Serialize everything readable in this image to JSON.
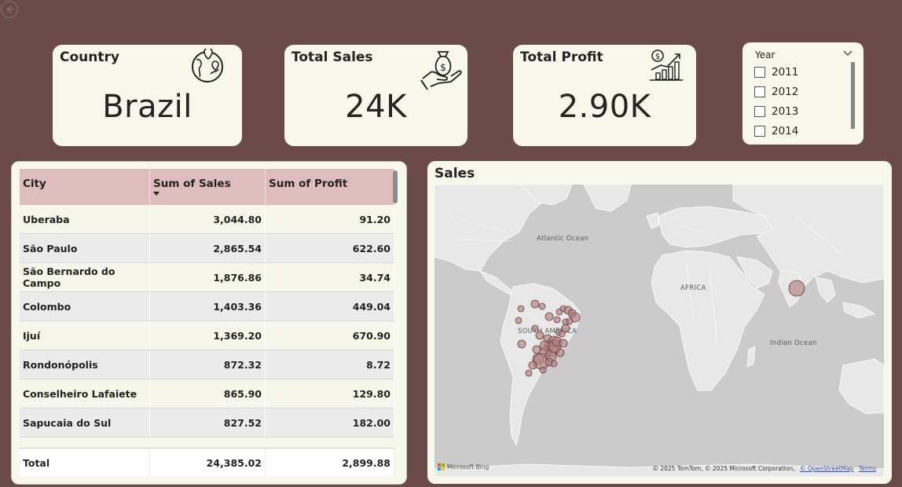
{
  "kpis": {
    "country": {
      "title": "Country",
      "value": "Brazil",
      "icon": "globe-location-icon"
    },
    "sales": {
      "title": "Total Sales",
      "value": "24K",
      "icon": "money-bag-hand-icon"
    },
    "profit": {
      "title": "Total Profit",
      "value": "2.90K",
      "icon": "growth-chart-dollar-icon"
    }
  },
  "year_slicer": {
    "title": "Year",
    "options": [
      "2011",
      "2012",
      "2013",
      "2014"
    ]
  },
  "table": {
    "headers": [
      "City",
      "Sum of Sales",
      "Sum of Profit"
    ],
    "rows": [
      {
        "city": "Uberaba",
        "sales": "3,044.80",
        "profit": "91.20"
      },
      {
        "city": "São Paulo",
        "sales": "2,865.54",
        "profit": "622.60"
      },
      {
        "city": "São Bernardo do Campo",
        "sales": "1,876.86",
        "profit": "34.74"
      },
      {
        "city": "Colombo",
        "sales": "1,403.36",
        "profit": "449.04"
      },
      {
        "city": "Ijuí",
        "sales": "1,369.20",
        "profit": "670.90"
      },
      {
        "city": "Rondonópolis",
        "sales": "872.32",
        "profit": "8.72"
      },
      {
        "city": "Conselheiro Lafaiete",
        "sales": "865.90",
        "profit": "129.80"
      },
      {
        "city": "Sapucaia do Sul",
        "sales": "827.52",
        "profit": "182.00"
      }
    ],
    "total": {
      "label": "Total",
      "sales": "24,385.02",
      "profit": "2,899.88"
    }
  },
  "map": {
    "title": "Sales",
    "labels": {
      "atlantic": "Atlantic Ocean",
      "africa": "AFRICA",
      "south_america": "SOUTH AMERICA",
      "indian": "Indian Ocean"
    },
    "bing": "Microsoft Bing",
    "copyright": "© 2025 TomTom, © 2025 Microsoft Corporation,",
    "osm_link": "© OpenStreetMap",
    "terms_link": "Terms",
    "bubble_color": "#b07e7e"
  },
  "colors": {
    "background": "#6b4a4a",
    "card": "#f8f7ec",
    "header": "#dfbcbd"
  }
}
